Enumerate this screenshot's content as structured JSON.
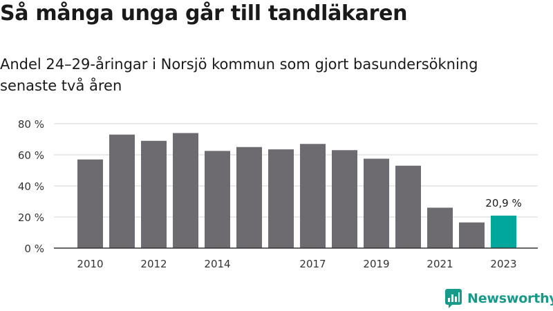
{
  "title": "Så många unga går till tandläkaren",
  "subtitle": "Andel 24–29-åringar i Norsjö kommun som gjort basundersökning senaste två åren",
  "brand": {
    "name": "Newsworthy",
    "color": "#169b8a"
  },
  "chart_data": {
    "type": "bar",
    "categories": [
      "2010",
      "2011",
      "2012",
      "2013",
      "2014",
      "2015",
      "2016",
      "2017",
      "2018",
      "2019",
      "2020",
      "2021",
      "2022",
      "2023"
    ],
    "values": [
      57,
      73,
      69,
      74,
      62.5,
      65,
      63.5,
      67,
      63,
      57.5,
      53,
      26,
      16.5,
      20.9
    ],
    "x_tick_labels": [
      "2010",
      "",
      "2012",
      "",
      "2014",
      "",
      "",
      "2017",
      "",
      "2019",
      "",
      "2021",
      "",
      "2023"
    ],
    "y_ticks": [
      0,
      20,
      40,
      60,
      80
    ],
    "y_tick_labels": [
      "0 %",
      "20 %",
      "40 %",
      "60 %",
      "80 %"
    ],
    "ylim": [
      0,
      80
    ],
    "grid": true,
    "bar_color": "#6d6b70",
    "highlight_color": "#00a79a",
    "highlight_index": 13,
    "data_labels": [
      "",
      "",
      "",
      "",
      "",
      "",
      "",
      "",
      "",
      "",
      "",
      "",
      "",
      "20,9 %"
    ]
  }
}
